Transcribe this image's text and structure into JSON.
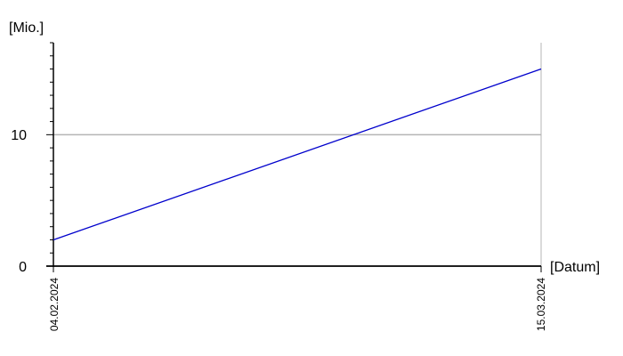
{
  "chart_data": {
    "type": "line",
    "xlabel": "[Datum]",
    "ylabel": "[Mio.]",
    "x_ticks": [
      "04.02.2024",
      "15.03.2024"
    ],
    "y_ticks": [
      0,
      10
    ],
    "xlim": [
      "2024-02-04",
      "2024-03-15"
    ],
    "ylim": [
      0,
      17
    ],
    "grid": {
      "y": true,
      "x": false
    },
    "series": [
      {
        "color": "#0000cc",
        "x": [
          "2024-02-04",
          "2024-03-15"
        ],
        "values": [
          2.0,
          15.0
        ]
      }
    ]
  }
}
